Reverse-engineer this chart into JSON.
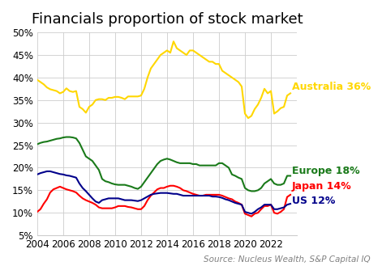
{
  "title": "Financials proportion of stock market",
  "source": "Source: Nucleus Wealth, S&P Capital IQ",
  "xlim": [
    2004,
    2024
  ],
  "ylim": [
    0.05,
    0.5
  ],
  "yticks": [
    0.05,
    0.1,
    0.15,
    0.2,
    0.25,
    0.3,
    0.35,
    0.4,
    0.45,
    0.5
  ],
  "xticks": [
    2004,
    2006,
    2008,
    2010,
    2012,
    2014,
    2016,
    2018,
    2020,
    2022
  ],
  "colors": {
    "australia": "#FFD700",
    "europe": "#1a7a1a",
    "japan": "#FF0000",
    "us": "#00008B"
  },
  "labels": {
    "australia": "Australia 36%",
    "europe": "Europe 18%",
    "japan": "Japan 14%",
    "us": "US 12%"
  },
  "australia_x": [
    2004.0,
    2004.25,
    2004.5,
    2004.75,
    2005.0,
    2005.25,
    2005.5,
    2005.75,
    2006.0,
    2006.25,
    2006.5,
    2006.75,
    2007.0,
    2007.25,
    2007.5,
    2007.75,
    2008.0,
    2008.25,
    2008.5,
    2008.75,
    2009.0,
    2009.25,
    2009.5,
    2009.75,
    2010.0,
    2010.25,
    2010.5,
    2010.75,
    2011.0,
    2011.25,
    2011.5,
    2011.75,
    2012.0,
    2012.25,
    2012.5,
    2012.75,
    2013.0,
    2013.25,
    2013.5,
    2013.75,
    2014.0,
    2014.25,
    2014.5,
    2014.75,
    2015.0,
    2015.25,
    2015.5,
    2015.75,
    2016.0,
    2016.25,
    2016.5,
    2016.75,
    2017.0,
    2017.25,
    2017.5,
    2017.75,
    2018.0,
    2018.25,
    2018.5,
    2018.75,
    2019.0,
    2019.25,
    2019.5,
    2019.75,
    2020.0,
    2020.25,
    2020.5,
    2020.75,
    2021.0,
    2021.25,
    2021.5,
    2021.75,
    2022.0,
    2022.25,
    2022.5,
    2022.75,
    2023.0,
    2023.25,
    2023.5
  ],
  "australia_y": [
    0.395,
    0.39,
    0.385,
    0.378,
    0.374,
    0.372,
    0.37,
    0.365,
    0.368,
    0.376,
    0.37,
    0.368,
    0.37,
    0.335,
    0.33,
    0.322,
    0.335,
    0.34,
    0.35,
    0.352,
    0.352,
    0.35,
    0.355,
    0.355,
    0.357,
    0.357,
    0.355,
    0.352,
    0.358,
    0.358,
    0.358,
    0.358,
    0.36,
    0.375,
    0.4,
    0.42,
    0.43,
    0.44,
    0.45,
    0.455,
    0.46,
    0.455,
    0.48,
    0.465,
    0.46,
    0.455,
    0.45,
    0.46,
    0.46,
    0.455,
    0.45,
    0.445,
    0.44,
    0.435,
    0.435,
    0.43,
    0.43,
    0.415,
    0.41,
    0.405,
    0.4,
    0.395,
    0.39,
    0.38,
    0.32,
    0.31,
    0.315,
    0.33,
    0.34,
    0.355,
    0.375,
    0.365,
    0.37,
    0.32,
    0.325,
    0.332,
    0.335,
    0.36,
    0.365
  ],
  "europe_x": [
    2004.0,
    2004.25,
    2004.5,
    2004.75,
    2005.0,
    2005.25,
    2005.5,
    2005.75,
    2006.0,
    2006.25,
    2006.5,
    2006.75,
    2007.0,
    2007.25,
    2007.5,
    2007.75,
    2008.0,
    2008.25,
    2008.5,
    2008.75,
    2009.0,
    2009.25,
    2009.5,
    2009.75,
    2010.0,
    2010.25,
    2010.5,
    2010.75,
    2011.0,
    2011.25,
    2011.5,
    2011.75,
    2012.0,
    2012.25,
    2012.5,
    2012.75,
    2013.0,
    2013.25,
    2013.5,
    2013.75,
    2014.0,
    2014.25,
    2014.5,
    2014.75,
    2015.0,
    2015.25,
    2015.5,
    2015.75,
    2016.0,
    2016.25,
    2016.5,
    2016.75,
    2017.0,
    2017.25,
    2017.5,
    2017.75,
    2018.0,
    2018.25,
    2018.5,
    2018.75,
    2019.0,
    2019.25,
    2019.5,
    2019.75,
    2020.0,
    2020.25,
    2020.5,
    2020.75,
    2021.0,
    2021.25,
    2021.5,
    2021.75,
    2022.0,
    2022.25,
    2022.5,
    2022.75,
    2023.0,
    2023.25,
    2023.5
  ],
  "europe_y": [
    0.252,
    0.255,
    0.257,
    0.258,
    0.26,
    0.262,
    0.264,
    0.265,
    0.267,
    0.268,
    0.268,
    0.267,
    0.265,
    0.255,
    0.24,
    0.225,
    0.22,
    0.215,
    0.205,
    0.195,
    0.175,
    0.17,
    0.168,
    0.165,
    0.163,
    0.162,
    0.162,
    0.162,
    0.16,
    0.158,
    0.155,
    0.153,
    0.158,
    0.168,
    0.178,
    0.188,
    0.198,
    0.208,
    0.215,
    0.218,
    0.22,
    0.218,
    0.215,
    0.212,
    0.21,
    0.21,
    0.21,
    0.21,
    0.208,
    0.208,
    0.205,
    0.205,
    0.205,
    0.205,
    0.205,
    0.205,
    0.21,
    0.21,
    0.205,
    0.2,
    0.185,
    0.182,
    0.178,
    0.175,
    0.155,
    0.15,
    0.148,
    0.148,
    0.15,
    0.155,
    0.165,
    0.17,
    0.175,
    0.165,
    0.162,
    0.162,
    0.165,
    0.182,
    0.182
  ],
  "japan_x": [
    2004.0,
    2004.25,
    2004.5,
    2004.75,
    2005.0,
    2005.25,
    2005.5,
    2005.75,
    2006.0,
    2006.25,
    2006.5,
    2006.75,
    2007.0,
    2007.25,
    2007.5,
    2007.75,
    2008.0,
    2008.25,
    2008.5,
    2008.75,
    2009.0,
    2009.25,
    2009.5,
    2009.75,
    2010.0,
    2010.25,
    2010.5,
    2010.75,
    2011.0,
    2011.25,
    2011.5,
    2011.75,
    2012.0,
    2012.25,
    2012.5,
    2012.75,
    2013.0,
    2013.25,
    2013.5,
    2013.75,
    2014.0,
    2014.25,
    2014.5,
    2014.75,
    2015.0,
    2015.25,
    2015.5,
    2015.75,
    2016.0,
    2016.25,
    2016.5,
    2016.75,
    2017.0,
    2017.25,
    2017.5,
    2017.75,
    2018.0,
    2018.25,
    2018.5,
    2018.75,
    2019.0,
    2019.25,
    2019.5,
    2019.75,
    2020.0,
    2020.25,
    2020.5,
    2020.75,
    2021.0,
    2021.25,
    2021.5,
    2021.75,
    2022.0,
    2022.25,
    2022.5,
    2022.75,
    2023.0,
    2023.25,
    2023.5
  ],
  "japan_y": [
    0.102,
    0.108,
    0.12,
    0.13,
    0.145,
    0.152,
    0.155,
    0.158,
    0.155,
    0.152,
    0.15,
    0.148,
    0.145,
    0.138,
    0.132,
    0.128,
    0.125,
    0.122,
    0.118,
    0.112,
    0.11,
    0.11,
    0.11,
    0.11,
    0.112,
    0.115,
    0.115,
    0.115,
    0.113,
    0.112,
    0.11,
    0.108,
    0.108,
    0.115,
    0.128,
    0.138,
    0.145,
    0.152,
    0.155,
    0.155,
    0.158,
    0.16,
    0.16,
    0.158,
    0.155,
    0.15,
    0.148,
    0.145,
    0.142,
    0.14,
    0.138,
    0.138,
    0.14,
    0.14,
    0.14,
    0.14,
    0.14,
    0.138,
    0.135,
    0.132,
    0.13,
    0.125,
    0.122,
    0.118,
    0.098,
    0.095,
    0.092,
    0.098,
    0.1,
    0.108,
    0.115,
    0.115,
    0.118,
    0.1,
    0.098,
    0.102,
    0.108,
    0.135,
    0.14
  ],
  "us_x": [
    2004.0,
    2004.25,
    2004.5,
    2004.75,
    2005.0,
    2005.25,
    2005.5,
    2005.75,
    2006.0,
    2006.25,
    2006.5,
    2006.75,
    2007.0,
    2007.25,
    2007.5,
    2007.75,
    2008.0,
    2008.25,
    2008.5,
    2008.75,
    2009.0,
    2009.25,
    2009.5,
    2009.75,
    2010.0,
    2010.25,
    2010.5,
    2010.75,
    2011.0,
    2011.25,
    2011.5,
    2011.75,
    2012.0,
    2012.25,
    2012.5,
    2012.75,
    2013.0,
    2013.25,
    2013.5,
    2013.75,
    2014.0,
    2014.25,
    2014.5,
    2014.75,
    2015.0,
    2015.25,
    2015.5,
    2015.75,
    2016.0,
    2016.25,
    2016.5,
    2016.75,
    2017.0,
    2017.25,
    2017.5,
    2017.75,
    2018.0,
    2018.25,
    2018.5,
    2018.75,
    2019.0,
    2019.25,
    2019.5,
    2019.75,
    2020.0,
    2020.25,
    2020.5,
    2020.75,
    2021.0,
    2021.25,
    2021.5,
    2021.75,
    2022.0,
    2022.25,
    2022.5,
    2022.75,
    2023.0,
    2023.25,
    2023.5
  ],
  "us_y": [
    0.185,
    0.188,
    0.19,
    0.192,
    0.192,
    0.19,
    0.188,
    0.186,
    0.185,
    0.183,
    0.182,
    0.18,
    0.178,
    0.165,
    0.155,
    0.148,
    0.14,
    0.132,
    0.125,
    0.122,
    0.128,
    0.13,
    0.132,
    0.132,
    0.132,
    0.132,
    0.13,
    0.128,
    0.128,
    0.128,
    0.127,
    0.126,
    0.128,
    0.132,
    0.136,
    0.14,
    0.142,
    0.143,
    0.144,
    0.144,
    0.144,
    0.143,
    0.142,
    0.142,
    0.14,
    0.138,
    0.138,
    0.138,
    0.138,
    0.138,
    0.138,
    0.138,
    0.138,
    0.138,
    0.136,
    0.136,
    0.135,
    0.133,
    0.13,
    0.128,
    0.125,
    0.122,
    0.12,
    0.118,
    0.102,
    0.1,
    0.098,
    0.102,
    0.108,
    0.112,
    0.118,
    0.118,
    0.118,
    0.108,
    0.108,
    0.11,
    0.112,
    0.118,
    0.12
  ],
  "background_color": "#ffffff",
  "grid_color": "#cccccc",
  "title_fontsize": 13,
  "label_fontsize": 9,
  "tick_fontsize": 8.5,
  "source_fontsize": 7.5,
  "linewidth": 1.5
}
